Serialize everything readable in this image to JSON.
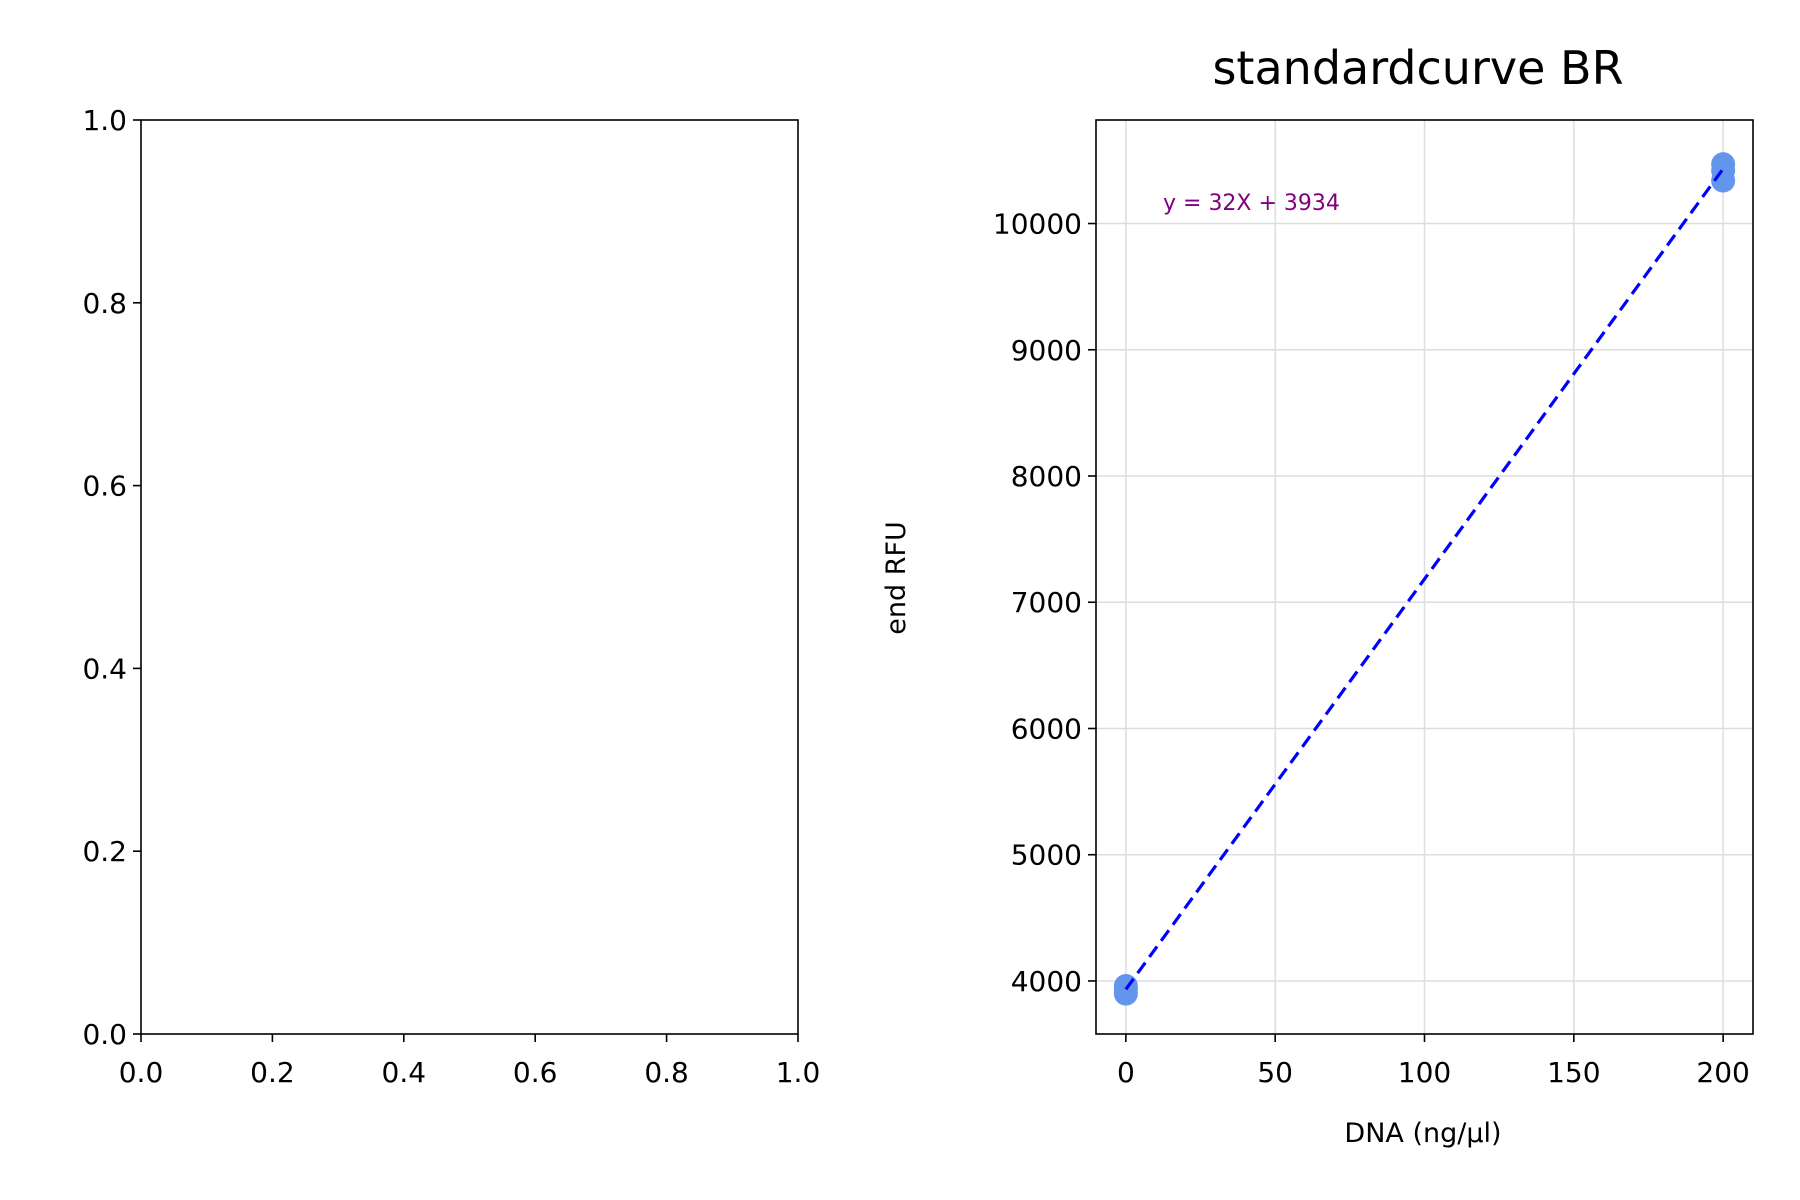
{
  "chart_data": [
    {
      "type": "scatter",
      "title": "",
      "xlabel": "",
      "ylabel": "",
      "xlim": [
        0,
        1
      ],
      "ylim": [
        0,
        1
      ],
      "x_ticks": [
        "0.0",
        "0.2",
        "0.4",
        "0.6",
        "0.8",
        "1.0"
      ],
      "y_ticks": [
        "0.0",
        "0.2",
        "0.4",
        "0.6",
        "0.8",
        "1.0"
      ],
      "grid": false,
      "series": []
    },
    {
      "type": "scatter",
      "title": "standardcurve BR",
      "xlabel": "DNA (ng/µl)",
      "ylabel": "end RFU",
      "xlim": [
        -10,
        210
      ],
      "ylim": [
        3580,
        10820
      ],
      "x_ticks": [
        "0",
        "50",
        "100",
        "150",
        "200"
      ],
      "y_ticks": [
        "4000",
        "5000",
        "6000",
        "7000",
        "8000",
        "9000",
        "10000"
      ],
      "grid": true,
      "series": [
        {
          "kind": "points",
          "color": "#6495ed",
          "points": [
            [
              0,
              3900
            ],
            [
              0,
              3940
            ],
            [
              0,
              3960
            ],
            [
              200,
              10340
            ],
            [
              200,
              10420
            ],
            [
              200,
              10470
            ]
          ]
        },
        {
          "kind": "fit-line",
          "color": "#0000ff",
          "style": "dashed",
          "points": [
            [
              0,
              3934
            ],
            [
              200,
              10434
            ]
          ]
        }
      ],
      "annotation": {
        "text": "y = 32X + 3934",
        "color": "#800080"
      }
    }
  ]
}
